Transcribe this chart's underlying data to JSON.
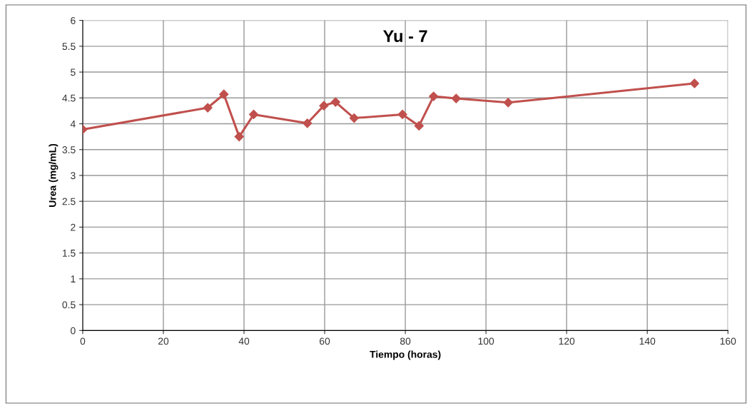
{
  "chart_data": {
    "type": "line",
    "title": "Yu - 7",
    "xlabel": "Tiempo (horas)",
    "ylabel": "Urea (mg/mL)",
    "x": [
      0,
      31,
      35,
      38.8,
      42.4,
      55.7,
      59.8,
      62.7,
      67.3,
      79.3,
      83.4,
      87,
      92.6,
      105.5,
      151.7
    ],
    "series": [
      {
        "color": "#c0504d",
        "values": [
          3.89,
          4.31,
          4.57,
          3.75,
          4.18,
          4.01,
          4.35,
          4.42,
          4.11,
          4.18,
          3.96,
          4.53,
          4.49,
          4.41,
          4.78
        ]
      }
    ],
    "xlim": [
      0,
      160
    ],
    "xticks": [
      0,
      20,
      40,
      60,
      80,
      100,
      120,
      140,
      160
    ],
    "ylim": [
      0,
      6
    ],
    "yticks": [
      0,
      0.5,
      1,
      1.5,
      2,
      2.5,
      3,
      3.5,
      4,
      4.5,
      5,
      5.5,
      6
    ],
    "grid": true,
    "marker": "diamond",
    "line_style": "solid"
  }
}
